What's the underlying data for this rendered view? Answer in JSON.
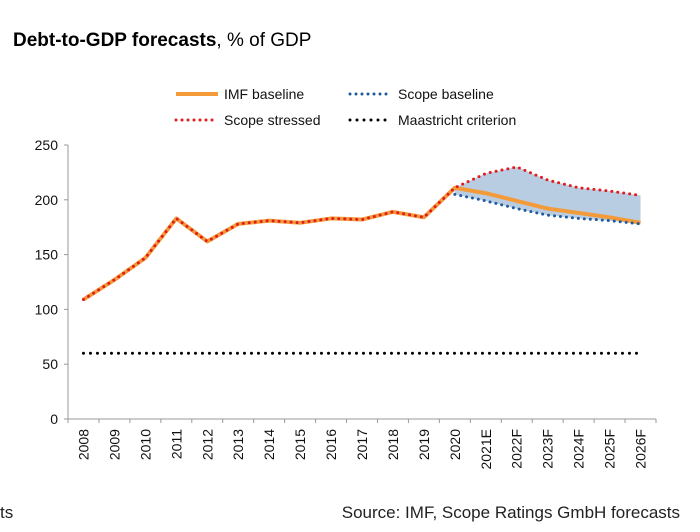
{
  "title_bold": "Debt-to-GDP forecasts",
  "title_rest": ", % of GDP",
  "footer_left": "ts",
  "footer_right": "Source: IMF, Scope Ratings GmbH forecasts",
  "colors": {
    "imf": "#f39b3a",
    "scope_baseline": "#1f5aa0",
    "scope_stressed": "#e31a1c",
    "maastricht": "#000000",
    "band": "#b9cde2"
  },
  "chart_data": {
    "type": "line",
    "categories": [
      "2008",
      "2009",
      "2010",
      "2011",
      "2012",
      "2013",
      "2014",
      "2015",
      "2016",
      "2017",
      "2018",
      "2019",
      "2020",
      "2021E",
      "2022F",
      "2023F",
      "2024F",
      "2025F",
      "2026F"
    ],
    "ylim": [
      0,
      250
    ],
    "yticks": [
      0,
      50,
      100,
      150,
      200,
      250
    ],
    "legend": "top",
    "series": [
      {
        "name": "IMF baseline",
        "style": "solid",
        "values": [
          109,
          127,
          147,
          183,
          162,
          178,
          181,
          179,
          183,
          182,
          189,
          184,
          211,
          206,
          199,
          192,
          188,
          184,
          179
        ]
      },
      {
        "name": "Scope baseline",
        "style": "dotted",
        "values": [
          null,
          null,
          null,
          null,
          null,
          null,
          null,
          null,
          null,
          null,
          null,
          null,
          205,
          199,
          192,
          186,
          183,
          181,
          178
        ]
      },
      {
        "name": "Scope stressed",
        "style": "dotted",
        "values": [
          109,
          127,
          147,
          183,
          162,
          178,
          181,
          179,
          183,
          182,
          189,
          184,
          211,
          224,
          230,
          218,
          211,
          208,
          204
        ]
      },
      {
        "name": "Maastricht criterion",
        "style": "dotted",
        "values": [
          60,
          60,
          60,
          60,
          60,
          60,
          60,
          60,
          60,
          60,
          60,
          60,
          60,
          60,
          60,
          60,
          60,
          60,
          60
        ]
      }
    ]
  }
}
